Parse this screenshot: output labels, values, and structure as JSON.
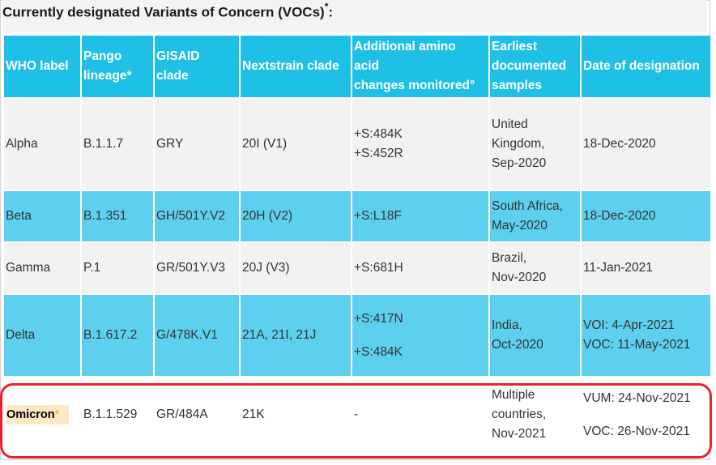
{
  "caption": "Currently designated Variants of Concern (VOCs)",
  "caption_marker": "*",
  "caption_suffix": ":",
  "headers": {
    "who": "WHO label",
    "pango_line1": "Pango",
    "pango_line2": "lineage*",
    "gisaid_line1": "GISAID",
    "gisaid_line2": "clade",
    "nextstrain": "Nextstrain clade",
    "amino_line1": "Additional amino",
    "amino_line2": "acid",
    "amino_line3": "changes monitored°",
    "earliest_line1": "Earliest",
    "earliest_line2": "documented",
    "earliest_line3": "samples",
    "date": "Date of designation"
  },
  "rows": [
    {
      "who": "Alpha",
      "pango": "B.1.1.7",
      "gisaid": "GRY",
      "nextstrain": "20I (V1)",
      "amino": [
        "+S:484K",
        "+S:452R"
      ],
      "earliest": [
        "United",
        "Kingdom,",
        "Sep-2020"
      ],
      "date": [
        "18-Dec-2020"
      ]
    },
    {
      "who": "Beta",
      "pango": "B.1.351",
      "gisaid": "GH/501Y.V2",
      "nextstrain": "20H (V2)",
      "amino": [
        "+S:L18F"
      ],
      "earliest": [
        "South Africa,",
        "May-2020"
      ],
      "date": [
        "18-Dec-2020"
      ]
    },
    {
      "who": "Gamma",
      "pango": "P.1",
      "gisaid": "GR/501Y.V3",
      "nextstrain": "20J (V3)",
      "amino": [
        "+S:681H"
      ],
      "earliest": [
        "Brazil,",
        "Nov-2020"
      ],
      "date": [
        "11-Jan-2021"
      ]
    },
    {
      "who": "Delta",
      "pango": "B.1.617.2",
      "gisaid": "G/478K.V1",
      "nextstrain": "21A, 21I, 21J",
      "amino": [
        "+S:417N",
        "+S:484K"
      ],
      "earliest": [
        "India,",
        "Oct-2020"
      ],
      "date": [
        "VOI: 4-Apr-2021",
        "VOC: 11-May-2021"
      ]
    },
    {
      "who": "Omicron",
      "who_marker": "*",
      "pango": "B.1.1.529",
      "gisaid": "GR/484A",
      "nextstrain": "21K",
      "amino": [
        "-"
      ],
      "earliest": [
        "Multiple",
        "countries,",
        "Nov-2021"
      ],
      "date": [
        "VUM: 24-Nov-2021",
        "VOC: 26-Nov-2021"
      ]
    }
  ],
  "colors": {
    "header_bg": "#1ec0e6",
    "row_light": "#f2f2f2",
    "row_blue": "#5dd0ef",
    "highlight_border": "#e8232d",
    "omicron_label_bg": "#fde9c6"
  }
}
